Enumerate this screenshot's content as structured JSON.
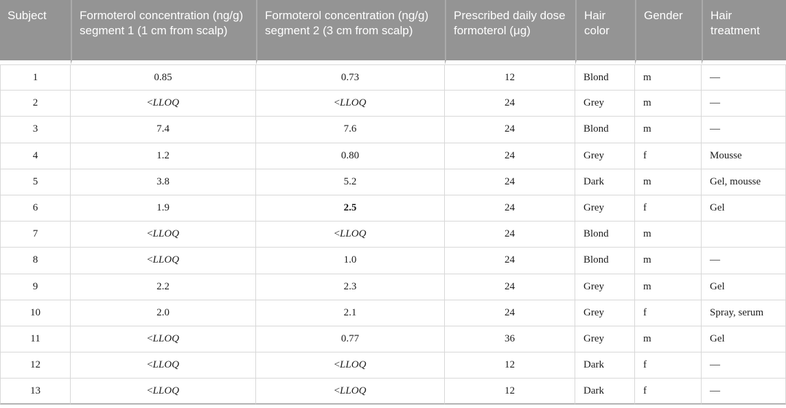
{
  "table": {
    "lloq_marker": "<LLOQ",
    "bold_cells": [
      {
        "row": 5,
        "col": 2
      }
    ],
    "columns": [
      {
        "label": "Subject",
        "align": "center"
      },
      {
        "label": "Formoterol concentration (ng/g) segment 1 (1 cm from scalp)",
        "align": "center"
      },
      {
        "label": "Formoterol concentration (ng/g) segment 2 (3 cm from scalp)",
        "align": "center"
      },
      {
        "label": "Prescribed daily dose formoterol (μg)",
        "align": "center"
      },
      {
        "label": "Hair color",
        "align": "left"
      },
      {
        "label": "Gender",
        "align": "left"
      },
      {
        "label": "Hair treatment",
        "align": "left"
      }
    ],
    "rows": [
      [
        "1",
        "0.85",
        "0.73",
        "12",
        "Blond",
        "m",
        "—"
      ],
      [
        "2",
        "<LLOQ",
        "<LLOQ",
        "24",
        "Grey",
        "m",
        "—"
      ],
      [
        "3",
        "7.4",
        "7.6",
        "24",
        "Blond",
        "m",
        "—"
      ],
      [
        "4",
        "1.2",
        "0.80",
        "24",
        "Grey",
        "f",
        "Mousse"
      ],
      [
        "5",
        "3.8",
        "5.2",
        "24",
        "Dark",
        "m",
        "Gel, mousse"
      ],
      [
        "6",
        "1.9",
        "2.5",
        "24",
        "Grey",
        "f",
        "Gel"
      ],
      [
        "7",
        "<LLOQ",
        "<LLOQ",
        "24",
        "Blond",
        "m",
        ""
      ],
      [
        "8",
        "<LLOQ",
        "1.0",
        "24",
        "Blond",
        "m",
        "—"
      ],
      [
        "9",
        "2.2",
        "2.3",
        "24",
        "Grey",
        "m",
        "Gel"
      ],
      [
        "10",
        "2.0",
        "2.1",
        "24",
        "Grey",
        "f",
        "Spray, serum"
      ],
      [
        "11",
        "<LLOQ",
        "0.77",
        "36",
        "Grey",
        "m",
        "Gel"
      ],
      [
        "12",
        "<LLOQ",
        "<LLOQ",
        "12",
        "Dark",
        "f",
        "—"
      ],
      [
        "13",
        "<LLOQ",
        "<LLOQ",
        "12",
        "Dark",
        "f",
        "—"
      ]
    ]
  },
  "colors": {
    "header_background": "#949494",
    "header_text": "#ffffff",
    "header_separator": "#ababab",
    "body_border": "#d7d7d7",
    "bottom_border": "#b2b2b2",
    "body_text": "#1a1a1a"
  }
}
